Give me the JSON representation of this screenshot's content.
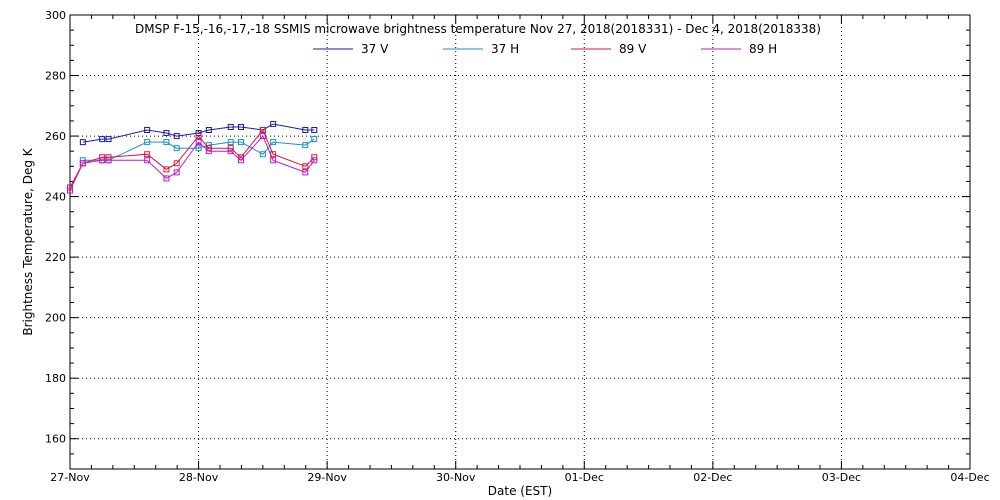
{
  "chart_data": {
    "type": "line",
    "title": "DMSP F-15,-16,-17,-18 SSMIS microwave brightness temperature Nov 27, 2018(2018331) - Dec  4, 2018(2018338)",
    "xlabel": "Date (EST)",
    "ylabel": "Brightness Temperature, Deg K",
    "xlim": [
      0,
      7
    ],
    "ylim": [
      150,
      300
    ],
    "x_ticks": [
      {
        "x": 0,
        "label": "27-Nov"
      },
      {
        "x": 1,
        "label": "28-Nov"
      },
      {
        "x": 2,
        "label": "29-Nov"
      },
      {
        "x": 3,
        "label": "30-Nov"
      },
      {
        "x": 4,
        "label": "01-Dec"
      },
      {
        "x": 5,
        "label": "02-Dec"
      },
      {
        "x": 6,
        "label": "03-Dec"
      },
      {
        "x": 7,
        "label": "04-Dec"
      }
    ],
    "y_ticks": [
      160,
      180,
      200,
      220,
      240,
      260,
      280,
      300
    ],
    "grid": true,
    "legend_position": "top-center",
    "series": [
      {
        "name": "37 V",
        "color": "#1a1aa6",
        "x": [
          0.1,
          0.25,
          0.3,
          0.6,
          0.75,
          0.83,
          1.0,
          1.08,
          1.25,
          1.33,
          1.5,
          1.58,
          1.83,
          1.9
        ],
        "y": [
          258,
          259,
          259,
          262,
          261,
          260,
          261,
          262,
          263,
          263,
          262,
          264,
          262,
          262
        ]
      },
      {
        "name": "37 H",
        "color": "#1a8fcf",
        "x": [
          0.1,
          0.25,
          0.3,
          0.6,
          0.75,
          0.83,
          1.0,
          1.08,
          1.25,
          1.33,
          1.5,
          1.58,
          1.83,
          1.9
        ],
        "y": [
          252,
          252,
          252,
          258,
          258,
          256,
          256,
          257,
          258,
          258,
          254,
          258,
          257,
          259
        ]
      },
      {
        "name": "89 V",
        "color": "#d01a3a",
        "x": [
          0.0,
          0.1,
          0.25,
          0.3,
          0.6,
          0.75,
          0.83,
          1.0,
          1.08,
          1.25,
          1.33,
          1.5,
          1.58,
          1.83,
          1.9
        ],
        "y": [
          243,
          251,
          253,
          253,
          254,
          249,
          251,
          260,
          256,
          256,
          253,
          262,
          254,
          250,
          253
        ]
      },
      {
        "name": "89 H",
        "color": "#c01ac0",
        "x": [
          0.0,
          0.1,
          0.25,
          0.3,
          0.6,
          0.75,
          0.83,
          1.0,
          1.08,
          1.25,
          1.33,
          1.5,
          1.58,
          1.83,
          1.9
        ],
        "y": [
          242,
          251,
          252,
          252,
          252,
          246,
          248,
          258,
          255,
          255,
          252,
          260,
          252,
          248,
          252
        ]
      }
    ]
  }
}
